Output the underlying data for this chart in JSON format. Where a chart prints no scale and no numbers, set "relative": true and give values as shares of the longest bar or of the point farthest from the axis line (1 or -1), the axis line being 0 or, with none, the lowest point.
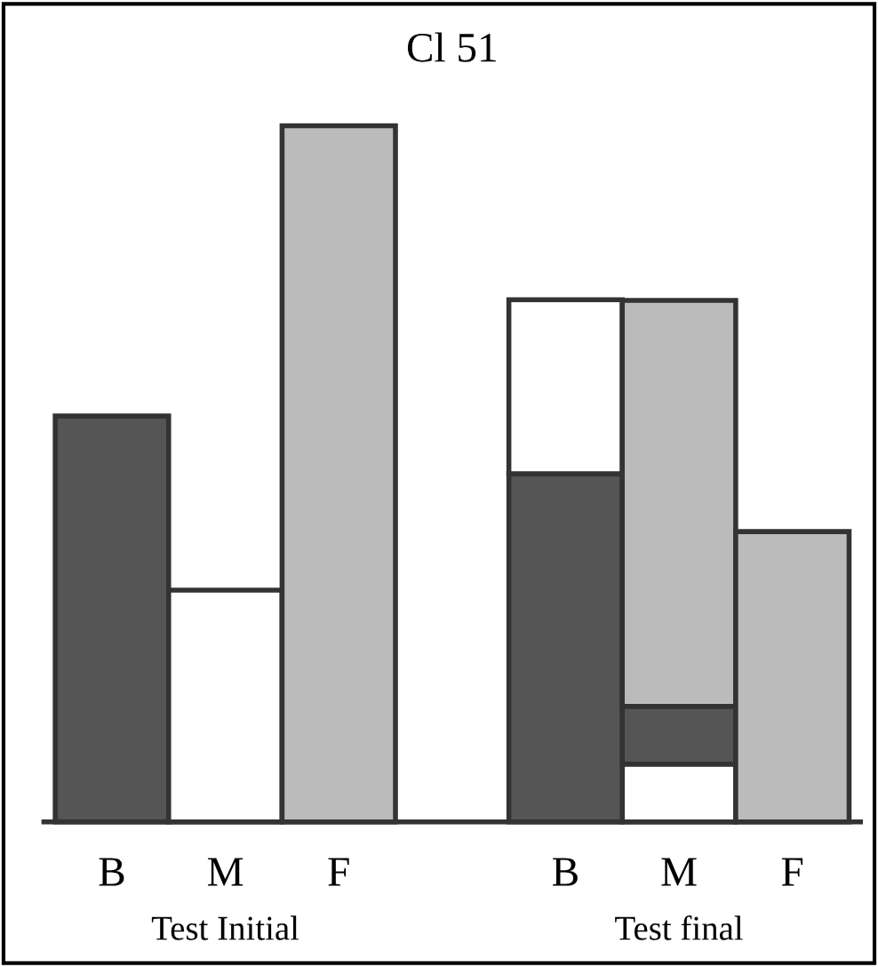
{
  "chart_data": {
    "type": "bar",
    "title": "Cl 51",
    "stacked": true,
    "relative": true,
    "categories": [
      "B",
      "M",
      "F",
      null,
      "B",
      "M",
      "F"
    ],
    "series": [
      {
        "color": "#ffffff",
        "values": [
          null,
          null,
          null,
          null,
          null,
          0.083,
          null
        ]
      },
      {
        "color": "#555555",
        "values": [
          0.583,
          null,
          null,
          null,
          0.5,
          0.083,
          null
        ]
      },
      {
        "color": "#ffffff",
        "values": [
          null,
          0.333,
          null,
          null,
          0.25,
          null,
          null
        ]
      },
      {
        "color": "#bbbbbb",
        "values": [
          null,
          null,
          1.0,
          null,
          null,
          0.583,
          0.417
        ]
      }
    ],
    "annotations": [
      "Test Initial",
      "Test final"
    ],
    "grid": false
  }
}
